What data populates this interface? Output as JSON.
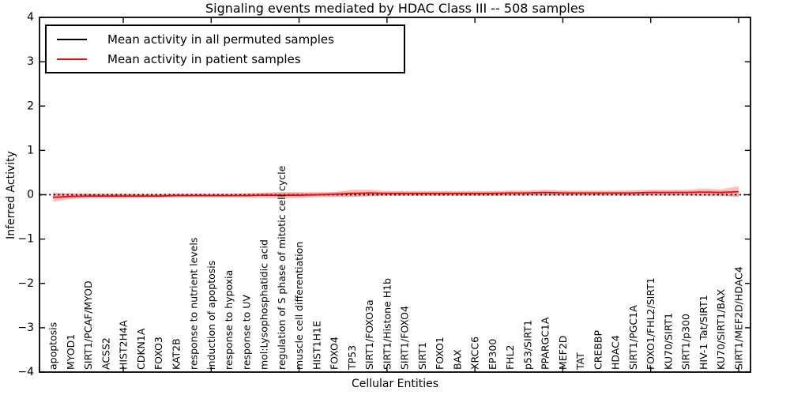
{
  "figure": {
    "title": "Signaling events mediated by HDAC Class III -- 508 samples",
    "xlabel": "Cellular Entities",
    "ylabel": "Inferred Activity",
    "background_color": "#ffffff",
    "axis_color": "#000000"
  },
  "legend": {
    "entries": [
      {
        "label": "Mean activity in all permuted samples",
        "color": "#000000"
      },
      {
        "label": "Mean activity in patient samples",
        "color": "#ff0000"
      }
    ]
  },
  "chart_data": {
    "type": "line",
    "title": "Signaling events mediated by HDAC Class III -- 508 samples",
    "xlabel": "Cellular Entities",
    "ylabel": "Inferred Activity",
    "ylim": [
      -4,
      4
    ],
    "yticks": [
      -4,
      -3,
      -2,
      -1,
      0,
      1,
      2,
      3,
      4
    ],
    "grid": false,
    "legend_position": "upper left",
    "categories": [
      "apoptosis",
      "MYOD1",
      "SIRT1/PCAF/MYOD",
      "ACSS2",
      "HIST2H4A",
      "CDKN1A",
      "FOXO3",
      "KAT2B",
      "response to nutrient levels",
      "induction of apoptosis",
      "response to hypoxia",
      "response to UV",
      "mol:Lysophosphatidic acid",
      "regulation of S phase of mitotic cell cycle",
      "muscle cell differentiation",
      "HIST1H1E",
      "FOXO4",
      "TP53",
      "SIRT1/FOXO3a",
      "SIRT1/Histone H1b",
      "SIRT1/FOXO4",
      "SIRT1",
      "FOXO1",
      "BAX",
      "XRCC6",
      "EP300",
      "FHL2",
      "p53/SIRT1",
      "PPARGC1A",
      "MEF2D",
      "TAT",
      "CREBBP",
      "HDAC4",
      "SIRT1/PGC1A",
      "FOXO1/FHL2/SIRT1",
      "KU70/SIRT1",
      "SIRT1/p300",
      "HIV-1 Tat/SIRT1",
      "KU70/SIRT1/BAX",
      "SIRT1/MEF2D/HDAC4"
    ],
    "series": [
      {
        "name": "Mean activity in all permuted samples",
        "color": "#000000",
        "linestyle": "dotted",
        "values": [
          0,
          0,
          0,
          0,
          0,
          0,
          0,
          0,
          0,
          0,
          0,
          0,
          0,
          0,
          0,
          0,
          0,
          0,
          0,
          0,
          0,
          0,
          0,
          0,
          0,
          0,
          0,
          0,
          0,
          0,
          0,
          0,
          0,
          0,
          0,
          0,
          0,
          0,
          0,
          0
        ],
        "band_halfwidth": [
          0.05,
          0.04,
          0.03,
          0.03,
          0.03,
          0.03,
          0.03,
          0.03,
          0.03,
          0.03,
          0.03,
          0.03,
          0.04,
          0.05,
          0.06,
          0.07,
          0.06,
          0.05,
          0.04,
          0.03,
          0.03,
          0.03,
          0.03,
          0.03,
          0.03,
          0.03,
          0.03,
          0.03,
          0.03,
          0.03,
          0.03,
          0.03,
          0.03,
          0.03,
          0.03,
          0.03,
          0.03,
          0.04,
          0.04,
          0.04
        ],
        "band_color": "#000000",
        "band_opacity": 0.12
      },
      {
        "name": "Mean activity in patient samples",
        "color": "#ff0000",
        "linestyle": "solid",
        "values": [
          -0.06,
          -0.04,
          -0.03,
          -0.03,
          -0.03,
          -0.03,
          -0.03,
          -0.02,
          -0.02,
          -0.02,
          -0.02,
          -0.02,
          -0.01,
          -0.01,
          -0.01,
          0.0,
          0.01,
          0.03,
          0.04,
          0.03,
          0.03,
          0.03,
          0.03,
          0.03,
          0.03,
          0.03,
          0.04,
          0.04,
          0.05,
          0.04,
          0.04,
          0.04,
          0.04,
          0.04,
          0.05,
          0.05,
          0.05,
          0.06,
          0.05,
          0.07
        ],
        "band_halfwidth": [
          0.1,
          0.06,
          0.05,
          0.05,
          0.05,
          0.04,
          0.04,
          0.04,
          0.04,
          0.04,
          0.04,
          0.05,
          0.06,
          0.07,
          0.06,
          0.04,
          0.05,
          0.08,
          0.07,
          0.05,
          0.05,
          0.05,
          0.05,
          0.05,
          0.05,
          0.05,
          0.05,
          0.05,
          0.06,
          0.05,
          0.05,
          0.05,
          0.05,
          0.06,
          0.06,
          0.06,
          0.06,
          0.08,
          0.07,
          0.12
        ],
        "band_color": "#ff0000",
        "band_opacity": 0.25
      }
    ],
    "x_major_tick_every": 5
  }
}
